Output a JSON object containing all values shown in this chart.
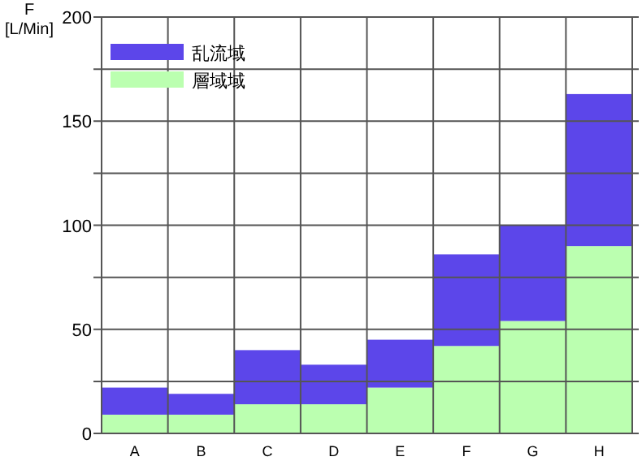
{
  "chart_data": {
    "type": "bar",
    "ylabel": "F\n[L/Min]",
    "categories": [
      "A",
      "B",
      "C",
      "D",
      "E",
      "F",
      "G",
      "H"
    ],
    "stacked": true,
    "series": [
      {
        "name": "層域域",
        "color": "#bbffb0",
        "values": [
          9,
          9,
          14,
          14,
          22,
          42,
          54,
          90
        ]
      },
      {
        "name": "乱流域",
        "color": "#5c46ea",
        "values": [
          13,
          10,
          26,
          19,
          23,
          44,
          46,
          73
        ]
      }
    ],
    "ylim": [
      0,
      200
    ],
    "yticks": [
      0,
      50,
      100,
      150,
      200
    ],
    "grid": true,
    "legend": "top left"
  }
}
